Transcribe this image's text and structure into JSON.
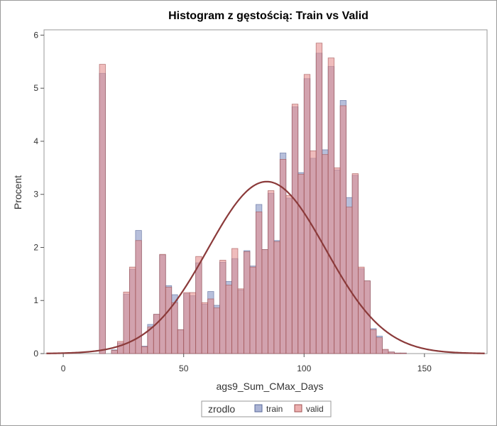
{
  "chart_data": {
    "type": "bar",
    "title": "Histogram z gęstością: Train vs Valid",
    "xlabel": "ags9_Sum_CMax_Days",
    "ylabel": "Procent",
    "xlim": [
      -8,
      176
    ],
    "ylim": [
      0,
      6.1
    ],
    "x_ticks": [
      "0",
      "50",
      "100",
      "150"
    ],
    "y_ticks": [
      "0",
      "1",
      "2",
      "3",
      "4",
      "5",
      "6"
    ],
    "bin_width": 2.5,
    "bin_starts": [
      15,
      17.5,
      20,
      22.5,
      25,
      27.5,
      30,
      32.5,
      35,
      37.5,
      40,
      42.5,
      45,
      47.5,
      50,
      52.5,
      55,
      57.5,
      60,
      62.5,
      65,
      67.5,
      70,
      72.5,
      75,
      77.5,
      80,
      82.5,
      85,
      87.5,
      90,
      92.5,
      95,
      97.5,
      100,
      102.5,
      105,
      107.5,
      110,
      112.5,
      115,
      117.5,
      120,
      122.5,
      125,
      127.5,
      130,
      132.5,
      135,
      137.5,
      140
    ],
    "series": [
      {
        "name": "train",
        "color": "#8794c3",
        "values": [
          5.28,
          0.0,
          0.07,
          0.2,
          1.12,
          1.59,
          2.32,
          0.14,
          0.55,
          0.74,
          1.86,
          1.28,
          1.11,
          0.45,
          1.13,
          1.09,
          1.71,
          0.93,
          1.17,
          0.91,
          1.72,
          1.36,
          1.79,
          1.2,
          1.94,
          1.65,
          2.81,
          1.96,
          3.02,
          2.13,
          3.78,
          2.93,
          4.65,
          3.41,
          5.18,
          3.68,
          5.66,
          3.84,
          5.41,
          3.46,
          4.77,
          2.94,
          3.36,
          1.6,
          1.37,
          0.47,
          0.33,
          0.07,
          0.03,
          0.01,
          0.01
        ]
      },
      {
        "name": "valid",
        "color": "#e48f8f",
        "values": [
          5.45,
          0.0,
          0.06,
          0.23,
          1.16,
          1.63,
          2.13,
          0.13,
          0.5,
          0.74,
          1.87,
          1.25,
          0.96,
          0.45,
          1.15,
          1.15,
          1.83,
          0.96,
          1.03,
          0.86,
          1.76,
          1.29,
          1.98,
          1.22,
          1.92,
          1.63,
          2.67,
          1.96,
          3.07,
          2.11,
          3.66,
          2.98,
          4.7,
          3.38,
          5.26,
          3.82,
          5.85,
          3.75,
          5.57,
          3.5,
          4.67,
          2.76,
          3.39,
          1.63,
          1.37,
          0.45,
          0.3,
          0.08,
          0.03,
          0.01,
          0.01
        ]
      }
    ],
    "density": {
      "type": "normal",
      "mean": 84.5,
      "sd": 24.5,
      "peak": 3.24,
      "color": "#8b3a3a"
    },
    "legend": {
      "position": "bottom-center",
      "title": "zrodlo",
      "items": [
        {
          "label": "train",
          "color": "#8794c3"
        },
        {
          "label": "valid",
          "color": "#e48f8f"
        }
      ]
    },
    "grid": false
  }
}
